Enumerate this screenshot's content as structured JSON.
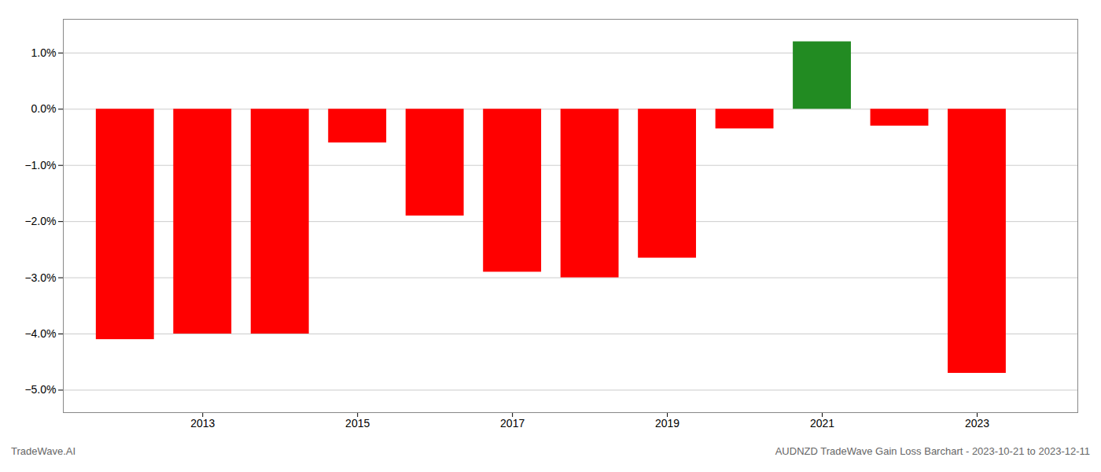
{
  "chart_data": {
    "type": "bar",
    "title": "AUDNZD TradeWave Gain Loss Barchart - 2023-10-21 to 2023-12-11",
    "annotations": [
      "TradeWave.AI"
    ],
    "x": [
      2012,
      2013,
      2014,
      2015,
      2016,
      2017,
      2018,
      2019,
      2020,
      2021,
      2022,
      2023
    ],
    "values": [
      -0.041,
      -0.04,
      -0.04,
      -0.006,
      -0.019,
      -0.029,
      -0.03,
      -0.0265,
      -0.0035,
      0.012,
      -0.003,
      -0.047
    ],
    "colors": [
      "#FF0000",
      "#FF0000",
      "#FF0000",
      "#FF0000",
      "#FF0000",
      "#FF0000",
      "#FF0000",
      "#FF0000",
      "#FF0000",
      "#228B22",
      "#FF0000",
      "#FF0000"
    ],
    "xlim": [
      2011.2,
      2024.3
    ],
    "xticks": [
      2013,
      2015,
      2017,
      2019,
      2021,
      2023
    ],
    "ylim": [
      -0.054,
      0.016
    ],
    "yticks": [
      {
        "value": -0.05,
        "label": "−5.0%"
      },
      {
        "value": -0.04,
        "label": "−4.0%"
      },
      {
        "value": -0.03,
        "label": "−3.0%"
      },
      {
        "value": -0.02,
        "label": "−2.0%"
      },
      {
        "value": -0.01,
        "label": "−1.0%"
      },
      {
        "value": 0,
        "label": "0.0%"
      },
      {
        "value": 0.01,
        "label": "1.0%"
      }
    ],
    "grid": true
  }
}
